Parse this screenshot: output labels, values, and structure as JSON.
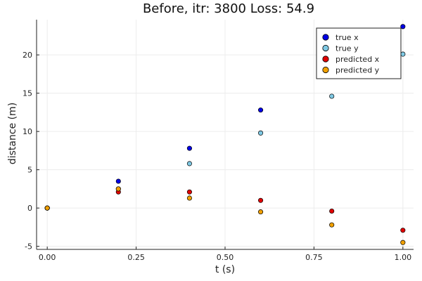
{
  "chart_data": {
    "type": "scatter",
    "title": "Before, itr: 3800 Loss: 54.9",
    "xlabel": "t (s)",
    "ylabel": "distance (m)",
    "xlim": [
      -0.03,
      1.03
    ],
    "ylim": [
      -5.4,
      24.6
    ],
    "x_ticks": [
      0.0,
      0.25,
      0.5,
      0.75,
      1.0
    ],
    "x_tick_labels": [
      "0.00",
      "0.25",
      "0.50",
      "0.75",
      "1.00"
    ],
    "y_ticks": [
      -5,
      0,
      5,
      10,
      15,
      20
    ],
    "y_tick_labels": [
      "-5",
      "0",
      "5",
      "10",
      "15",
      "20"
    ],
    "grid": true,
    "legend_position": "top-right",
    "series": [
      {
        "name": "true x",
        "color": "#0000e6",
        "x": [
          0.0,
          0.2,
          0.4,
          0.6,
          1.0
        ],
        "y": [
          0.0,
          3.5,
          7.8,
          12.8,
          23.7
        ]
      },
      {
        "name": "true y",
        "color": "#7ec8e3",
        "x": [
          0.0,
          0.2,
          0.4,
          0.6,
          0.8,
          1.0
        ],
        "y": [
          0.0,
          2.5,
          5.8,
          9.8,
          14.6,
          20.1
        ]
      },
      {
        "name": "predicted x",
        "color": "#e00000",
        "x": [
          0.0,
          0.2,
          0.4,
          0.6,
          0.8,
          1.0
        ],
        "y": [
          0.0,
          2.1,
          2.1,
          1.0,
          -0.4,
          -2.9
        ]
      },
      {
        "name": "predicted y",
        "color": "#f0a000",
        "x": [
          0.0,
          0.2,
          0.4,
          0.6,
          0.8,
          1.0
        ],
        "y": [
          0.0,
          2.5,
          1.3,
          -0.5,
          -2.2,
          -4.5
        ]
      }
    ]
  }
}
